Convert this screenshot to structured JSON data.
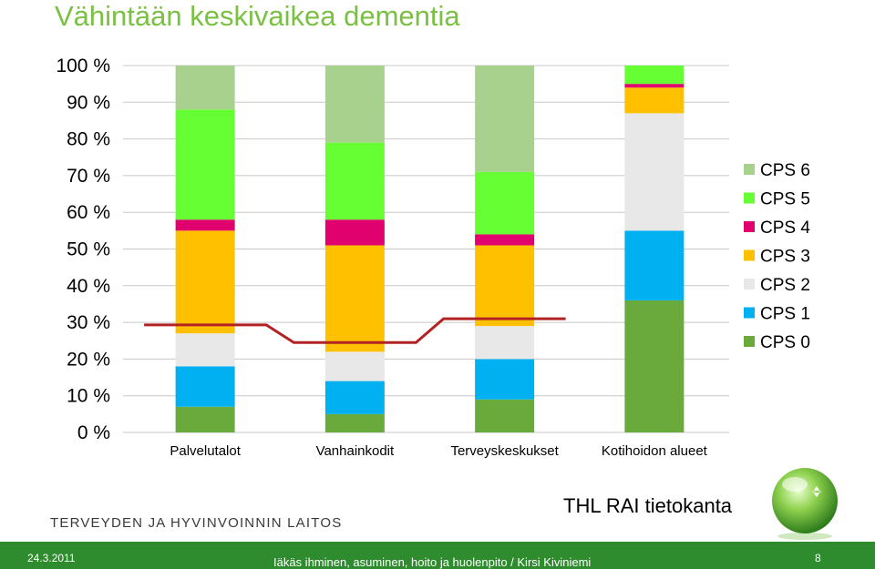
{
  "slide": {
    "title": "Vähintään keskivaikea dementia",
    "org_name": "TERVEYDEN JA HYVINVOINNIN LAITOS",
    "source": "THL RAI tietokanta",
    "footer": {
      "date": "24.3.2011",
      "text": "Iäkäs ihminen, asuminen, hoito ja huolenpito / Kirsi Kiviniemi",
      "page": "8"
    }
  },
  "chart_data": {
    "type": "bar",
    "stacked": true,
    "percent_stacked": true,
    "categories": [
      "Palvelutalot",
      "Vanhainkodit",
      "Terveyskeskukset",
      "Kotihoidon alueet"
    ],
    "y_ticks": [
      "0 %",
      "10 %",
      "20 %",
      "30 %",
      "40 %",
      "50 %",
      "60 %",
      "70 %",
      "80 %",
      "90 %",
      "100 %"
    ],
    "ylim": [
      0,
      100
    ],
    "grid": true,
    "legend_position": "right",
    "series": [
      {
        "name": "CPS 0",
        "color": "#6aaa3c",
        "values": [
          7,
          5,
          9,
          36
        ]
      },
      {
        "name": "CPS 1",
        "color": "#00b0f0",
        "values": [
          11,
          9,
          11,
          19
        ]
      },
      {
        "name": "CPS 2",
        "color": "#e8e8e8",
        "values": [
          9,
          8,
          9,
          32
        ]
      },
      {
        "name": "CPS 3",
        "color": "#ffc000",
        "values": [
          28,
          29,
          22,
          7
        ]
      },
      {
        "name": "CPS 4",
        "color": "#e0006e",
        "values": [
          3,
          7,
          3,
          1
        ]
      },
      {
        "name": "CPS 5",
        "color": "#66ff33",
        "values": [
          30,
          21,
          17,
          5
        ]
      },
      {
        "name": "CPS 6",
        "color": "#a9d18e",
        "values": [
          12,
          21,
          29,
          0
        ]
      }
    ],
    "reference_line": {
      "color": "#b22222",
      "values": [
        29.3,
        24.5,
        31
      ]
    }
  }
}
